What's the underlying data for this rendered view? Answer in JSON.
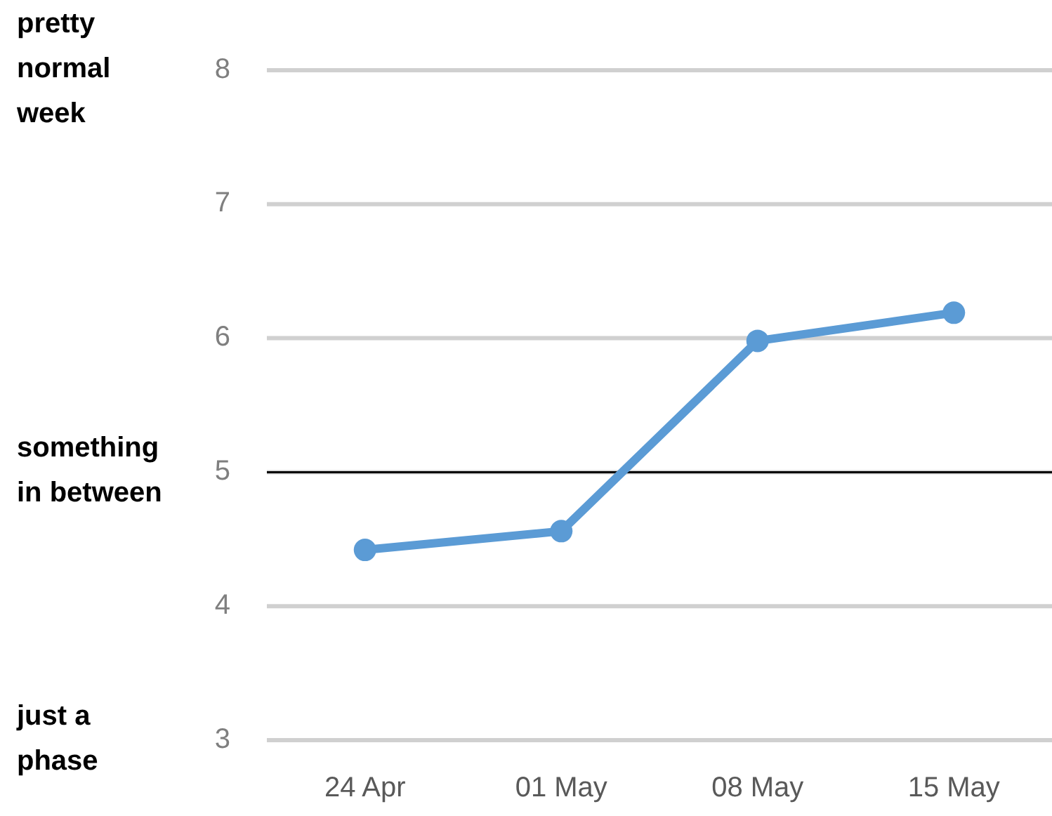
{
  "chart_data": {
    "type": "line",
    "categories": [
      "24 Apr",
      "01 May",
      "08 May",
      "15 May"
    ],
    "series": [
      {
        "color": "#5b9bd5",
        "values": [
          4.42,
          4.56,
          5.98,
          6.19
        ]
      }
    ],
    "ylim": [
      3,
      8
    ],
    "yticks": [
      3,
      4,
      5,
      6,
      7,
      8
    ],
    "grid": "y",
    "marker": "circle",
    "line_style": "solid",
    "ref_lines": [
      {
        "axis": "y",
        "value": 5,
        "label": "something in between",
        "color": "#000000"
      }
    ],
    "annotations": [
      "pretty normal week",
      "just a phase"
    ]
  }
}
